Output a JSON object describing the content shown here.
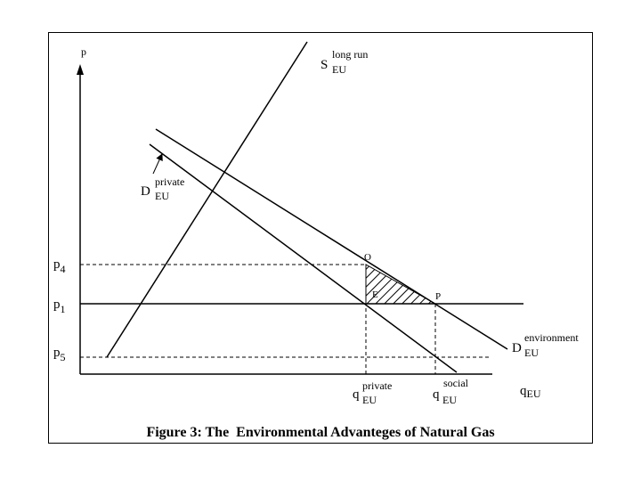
{
  "axes": {
    "y_label": "p",
    "x_label_main": "q",
    "x_label_sub": "EU"
  },
  "price_levels": {
    "p4": {
      "main": "p",
      "sub": "4"
    },
    "p1": {
      "main": "p",
      "sub": "1"
    },
    "p5": {
      "main": "p",
      "sub": "5"
    }
  },
  "curves": {
    "supply": {
      "main": "S",
      "sup": "long run",
      "sub": "EU"
    },
    "demand_private": {
      "main": "D",
      "sup": "private",
      "sub": "EU"
    },
    "demand_environment": {
      "main": "D",
      "sup": "environment",
      "sub": "EU"
    }
  },
  "quantities": {
    "private": {
      "main": "q",
      "sup": "private",
      "sub": "EU"
    },
    "social": {
      "main": "q",
      "sup": "social",
      "sub": "EU"
    }
  },
  "points": {
    "O": "O",
    "E": "E",
    "P": "P"
  },
  "caption": "Figure 3: The  Environmental Advanteges of Natural Gas",
  "colors": {
    "line": "#000000",
    "background": "#ffffff"
  }
}
